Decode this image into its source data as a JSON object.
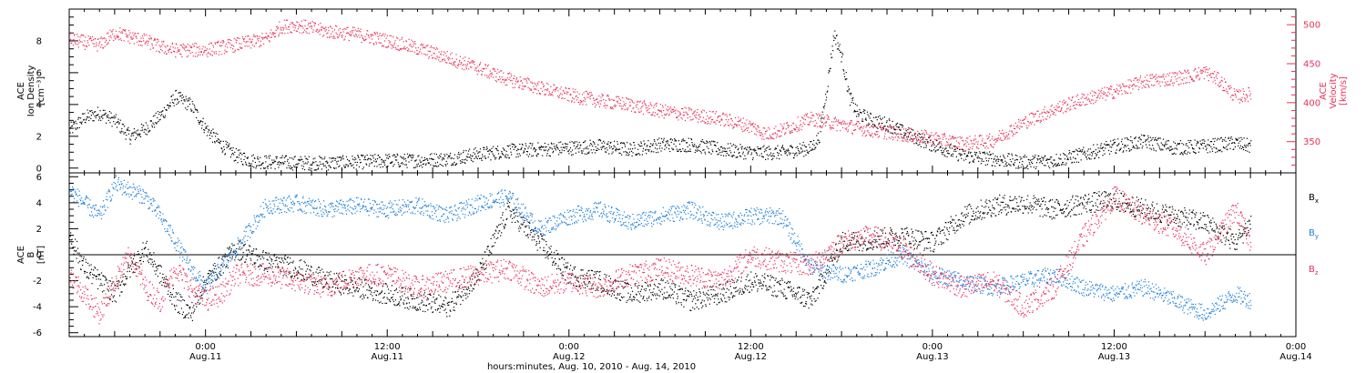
{
  "chart_data": [
    {
      "type": "scatter",
      "title": "",
      "x_axis": {
        "range_hours": [
          -9,
          72
        ],
        "ticks": [
          {
            "hours": 0,
            "time": "0:00",
            "day": "Aug.11"
          },
          {
            "hours": 12,
            "time": "12:00",
            "day": "Aug.11"
          },
          {
            "hours": 24,
            "time": "0:00",
            "day": "Aug.12"
          },
          {
            "hours": 36,
            "time": "12:00",
            "day": "Aug.12"
          },
          {
            "hours": 48,
            "time": "0:00",
            "day": "Aug.13"
          },
          {
            "hours": 60,
            "time": "12:00",
            "day": "Aug.13"
          },
          {
            "hours": 72,
            "time": "0:00",
            "day": "Aug.14"
          }
        ],
        "xlabel": "hours:minutes, Aug. 10, 2010 - Aug. 14, 2010"
      },
      "left_axis": {
        "ylabel_lines": [
          "ACE",
          "Ion Density",
          "[cm⁻³]"
        ],
        "ylim": [
          -0.3,
          10
        ],
        "ticks": [
          0,
          2,
          4,
          6,
          8
        ],
        "color": "#000000"
      },
      "right_axis": {
        "ylabel_lines": [
          "ACE",
          "Velocity",
          "[km/s]"
        ],
        "ylim": [
          310,
          520
        ],
        "ticks": [
          350,
          400,
          450,
          500
        ],
        "color": "#e8305a"
      },
      "series": [
        {
          "axis": "left",
          "color": "#000000",
          "x": [
            -9,
            -8,
            -7,
            -6,
            -5,
            -4,
            -3,
            -2,
            -1,
            0,
            1,
            2,
            3,
            4,
            5,
            6,
            8,
            10,
            12,
            14,
            16,
            18,
            20,
            22,
            24,
            26,
            28,
            30,
            32,
            34,
            36,
            38,
            40,
            40.5,
            41,
            41.5,
            42,
            42.5,
            43,
            44,
            45,
            46,
            48,
            50,
            52,
            54,
            56,
            58,
            60,
            62,
            64,
            66,
            68,
            69
          ],
          "y": [
            2.4,
            3.2,
            3.5,
            3.0,
            2.0,
            2.5,
            3.3,
            4.5,
            4.0,
            2.5,
            1.5,
            0.8,
            0.5,
            0.4,
            0.4,
            0.35,
            0.35,
            0.4,
            0.5,
            0.5,
            0.6,
            0.9,
            1.1,
            1.2,
            1.3,
            1.4,
            1.2,
            1.5,
            1.5,
            1.2,
            1.0,
            1.0,
            1.3,
            2.0,
            5.0,
            8.5,
            7.0,
            4.5,
            3.5,
            3.0,
            2.8,
            2.3,
            1.5,
            0.8,
            0.6,
            0.4,
            0.5,
            0.9,
            1.4,
            1.7,
            1.3,
            1.4,
            1.6,
            1.4
          ]
        },
        {
          "axis": "right",
          "color": "#e8305a",
          "x": [
            -9,
            -8,
            -7,
            -6,
            -5,
            -4,
            -3,
            -2,
            -1,
            0,
            2,
            4,
            5,
            6,
            8,
            10,
            12,
            14,
            16,
            18,
            20,
            22,
            24,
            26,
            28,
            30,
            32,
            34,
            36,
            37,
            38,
            40,
            42,
            44,
            46,
            48,
            50,
            52,
            54,
            56,
            58,
            60,
            62,
            64,
            65,
            66,
            67,
            68,
            69
          ],
          "y": [
            482,
            478,
            475,
            490,
            485,
            480,
            472,
            468,
            468,
            468,
            475,
            482,
            498,
            500,
            492,
            488,
            480,
            470,
            458,
            445,
            430,
            420,
            410,
            403,
            398,
            390,
            385,
            380,
            370,
            360,
            365,
            380,
            372,
            365,
            360,
            355,
            348,
            352,
            375,
            392,
            405,
            415,
            428,
            432,
            435,
            440,
            428,
            408,
            412
          ]
        }
      ]
    },
    {
      "type": "scatter",
      "title": "",
      "x_axis": {
        "range_hours": [
          -9,
          72
        ],
        "xlabel": "hours:minutes, Aug. 10, 2010 - Aug. 14, 2010"
      },
      "left_axis": {
        "ylabel_lines": [
          "ACE",
          "B",
          "[nT]"
        ],
        "ylim": [
          -6.3,
          6.3
        ],
        "ticks": [
          -6,
          -4,
          -2,
          0,
          2,
          4,
          6
        ]
      },
      "legend": {
        "placement": "right",
        "entries": [
          {
            "base": "B",
            "sub": "x",
            "color": "#000000"
          },
          {
            "base": "B",
            "sub": "y",
            "color": "#1e7fd9"
          },
          {
            "base": "B",
            "sub": "z",
            "color": "#e8305a"
          }
        ]
      },
      "series": [
        {
          "name": "Bx",
          "color": "#000000",
          "x": [
            -9,
            -8,
            -7,
            -6,
            -5,
            -4,
            -3,
            -2,
            -1,
            0,
            2,
            4,
            6,
            8,
            10,
            12,
            14,
            16,
            18,
            20,
            22,
            24,
            26,
            28,
            30,
            32,
            34,
            36,
            38,
            40,
            42,
            44,
            46,
            48,
            50,
            52,
            54,
            56,
            58,
            60,
            62,
            64,
            66,
            68,
            69
          ],
          "y": [
            1.5,
            -1.0,
            -2.0,
            -3.0,
            -1.0,
            0.5,
            -1.5,
            -3.5,
            -4.5,
            -2.0,
            0.5,
            -0.5,
            -1.0,
            -2.0,
            -2.5,
            -3.0,
            -3.5,
            -4.0,
            -1.5,
            3.5,
            1.0,
            -1.5,
            -2.0,
            -3.0,
            -2.5,
            -3.5,
            -3.0,
            -2.0,
            -2.5,
            -3.5,
            1.0,
            1.2,
            1.5,
            1.0,
            3.0,
            3.8,
            4.0,
            3.5,
            4.0,
            4.2,
            3.5,
            3.0,
            2.5,
            1.0,
            2.5
          ]
        },
        {
          "name": "By",
          "color": "#1e7fd9",
          "x": [
            -9,
            -8,
            -7,
            -6,
            -5,
            -4,
            -3,
            -2,
            -1,
            0,
            1,
            2,
            4,
            6,
            8,
            10,
            12,
            14,
            16,
            18,
            20,
            22,
            24,
            26,
            28,
            30,
            32,
            34,
            36,
            38,
            40,
            42,
            44,
            46,
            48,
            50,
            52,
            54,
            56,
            58,
            60,
            62,
            64,
            66,
            68,
            69
          ],
          "y": [
            5.0,
            4.0,
            3.0,
            5.5,
            5.0,
            4.5,
            3.0,
            1.0,
            -1.0,
            -2.5,
            -1.0,
            0.5,
            3.8,
            4.0,
            3.5,
            3.8,
            3.5,
            3.8,
            3.0,
            4.0,
            4.5,
            2.0,
            3.0,
            3.5,
            2.5,
            3.0,
            3.5,
            2.5,
            3.0,
            3.0,
            -1.0,
            -1.5,
            -1.0,
            0.0,
            -1.5,
            -2.0,
            -2.5,
            -2.0,
            -1.5,
            -2.5,
            -3.0,
            -2.5,
            -3.5,
            -4.5,
            -3.0,
            -3.5
          ]
        },
        {
          "name": "Bz",
          "color": "#e8305a",
          "x": [
            -9,
            -8,
            -7,
            -6,
            -5,
            -4,
            -3,
            -2,
            -1,
            0,
            1,
            2,
            4,
            6,
            8,
            10,
            12,
            14,
            16,
            18,
            20,
            22,
            24,
            26,
            28,
            30,
            32,
            34,
            36,
            38,
            40,
            42,
            44,
            46,
            48,
            50,
            52,
            54,
            56,
            58,
            60,
            62,
            64,
            66,
            68,
            69
          ],
          "y": [
            -1.5,
            -3.0,
            -4.5,
            -2.0,
            0.0,
            -2.5,
            -3.5,
            -1.0,
            -2.5,
            -3.5,
            -3.0,
            -1.5,
            -1.5,
            -2.0,
            -2.5,
            -1.5,
            -1.5,
            -2.5,
            -2.0,
            -1.5,
            -1.0,
            -2.5,
            -2.0,
            -2.5,
            -1.5,
            -1.0,
            -1.5,
            -2.0,
            0.0,
            -0.5,
            -0.8,
            1.0,
            1.5,
            0.5,
            -1.5,
            -2.5,
            -2.0,
            -4.0,
            -2.5,
            1.5,
            4.5,
            3.0,
            2.0,
            0.0,
            3.5,
            1.0
          ]
        }
      ]
    }
  ]
}
